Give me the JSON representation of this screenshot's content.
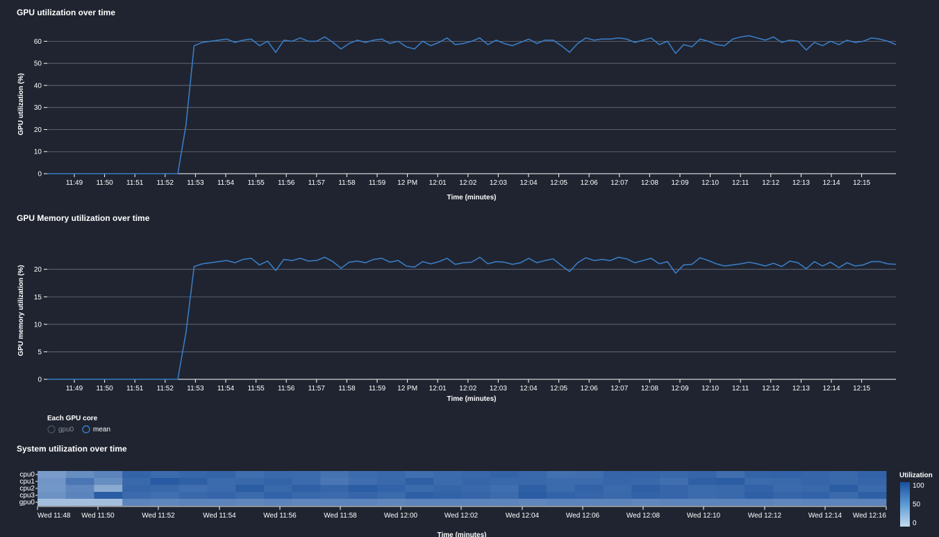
{
  "chart_data": [
    {
      "type": "line",
      "title": "GPU utilization over time",
      "xlabel": "Time (minutes)",
      "ylabel": "GPU utilization (%)",
      "ylim": [
        0,
        68
      ],
      "yticks": [
        0,
        10,
        20,
        30,
        40,
        50,
        60
      ],
      "grid": true,
      "x_tick_labels": [
        "11:49",
        "11:50",
        "11:51",
        "11:52",
        "11:53",
        "11:54",
        "11:55",
        "11:56",
        "11:57",
        "11:58",
        "11:59",
        "12 PM",
        "12:01",
        "12:02",
        "12:03",
        "12:04",
        "12:05",
        "12:06",
        "12:07",
        "12:08",
        "12:09",
        "12:10",
        "12:11",
        "12:12",
        "12:13",
        "12:14",
        "12:15"
      ],
      "series": [
        {
          "name": "mean",
          "color": "#3a7cc4",
          "values": [
            0,
            0,
            0,
            0,
            0,
            0,
            0,
            0,
            0,
            0,
            0,
            0,
            0,
            0,
            0,
            0,
            0,
            22,
            58,
            59.5,
            60,
            60.5,
            61,
            59.5,
            60.5,
            61,
            58,
            60,
            55,
            60.5,
            60,
            61.5,
            60,
            60,
            62,
            59.5,
            56.5,
            59,
            60.5,
            59.5,
            60.5,
            61,
            59,
            60,
            57.5,
            56.5,
            60,
            58,
            59.5,
            61.5,
            58.5,
            59,
            60,
            61.5,
            58.5,
            60.5,
            59,
            58,
            59.5,
            61,
            59,
            60.5,
            60.5,
            58,
            55,
            59,
            61.5,
            60.5,
            61,
            61,
            61.5,
            61,
            59.5,
            60.5,
            61.5,
            58.5,
            60,
            54.5,
            58.5,
            57.5,
            61,
            60,
            58.5,
            58,
            61,
            62,
            62.5,
            61.5,
            60.5,
            62,
            59.5,
            60.5,
            60,
            56,
            59.5,
            58,
            60,
            58.5,
            60.5,
            59.5,
            60,
            61.5,
            61,
            60,
            58.5
          ]
        }
      ]
    },
    {
      "type": "line",
      "title": "GPU Memory utilization over time",
      "xlabel": "Time (minutes)",
      "ylabel": "GPU memory utilization (%)",
      "ylim": [
        0,
        24
      ],
      "yticks": [
        0,
        5,
        10,
        15,
        20
      ],
      "grid": true,
      "x_tick_labels": [
        "11:49",
        "11:50",
        "11:51",
        "11:52",
        "11:53",
        "11:54",
        "11:55",
        "11:56",
        "11:57",
        "11:58",
        "11:59",
        "12 PM",
        "12:01",
        "12:02",
        "12:03",
        "12:04",
        "12:05",
        "12:06",
        "12:07",
        "12:08",
        "12:09",
        "12:10",
        "12:11",
        "12:12",
        "12:13",
        "12:14",
        "12:15"
      ],
      "series": [
        {
          "name": "mean",
          "color": "#3a7cc4",
          "values": [
            0,
            0,
            0,
            0,
            0,
            0,
            0,
            0,
            0,
            0,
            0,
            0,
            0,
            0,
            0,
            0,
            0,
            8.5,
            20.5,
            21,
            21.2,
            21.4,
            21.6,
            21.2,
            21.8,
            22,
            20.8,
            21.5,
            19.8,
            21.8,
            21.6,
            22,
            21.5,
            21.6,
            22.2,
            21.4,
            20.2,
            21.3,
            21.5,
            21.2,
            21.8,
            22,
            21.3,
            21.6,
            20.6,
            20.4,
            21.4,
            21,
            21.4,
            22,
            20.9,
            21.2,
            21.3,
            22.2,
            21,
            21.4,
            21.3,
            20.9,
            21.2,
            22,
            21.2,
            21.6,
            21.9,
            20.7,
            19.6,
            21.2,
            22.1,
            21.6,
            21.8,
            21.6,
            22.2,
            21.9,
            21.2,
            21.6,
            22,
            21,
            21.4,
            19.3,
            20.8,
            20.9,
            22.1,
            21.6,
            21,
            20.6,
            20.8,
            21,
            21.3,
            21,
            20.6,
            21.1,
            20.5,
            21.5,
            21.2,
            20.1,
            21.4,
            20.6,
            21.3,
            20.3,
            21.2,
            20.6,
            20.8,
            21.4,
            21.4,
            21,
            20.9
          ]
        }
      ],
      "legend": {
        "title": "Each GPU core",
        "items": [
          "gpu0",
          "mean"
        ],
        "placement": "bottom-left"
      }
    },
    {
      "type": "heatmap",
      "title": "System utilization over time",
      "xlabel": "Time (minutes)",
      "rows": [
        "cpu0",
        "cpu1",
        "cpu2",
        "cpu3",
        "gpu0"
      ],
      "x_tick_labels": [
        "Wed 11:48",
        "Wed 11:50",
        "Wed 11:52",
        "Wed 11:54",
        "Wed 11:56",
        "Wed 11:58",
        "Wed 12:00",
        "Wed 12:02",
        "Wed 12:04",
        "Wed 12:06",
        "Wed 12:08",
        "Wed 12:10",
        "Wed 12:12",
        "Wed 12:14",
        "Wed 12:16"
      ],
      "legend_title": "Utilization",
      "color_range": [
        0,
        100
      ],
      "legend_ticks": [
        0,
        50,
        100
      ],
      "values": [
        [
          45,
          55,
          62,
          85,
          80,
          83,
          85,
          78,
          82,
          80,
          75,
          80,
          82,
          78,
          80,
          82,
          85,
          82,
          76,
          78,
          84,
          84,
          82,
          84,
          78,
          85,
          86,
          84,
          82,
          86
        ],
        [
          50,
          72,
          55,
          82,
          92,
          88,
          80,
          82,
          85,
          80,
          72,
          78,
          82,
          88,
          80,
          84,
          82,
          82,
          80,
          80,
          83,
          82,
          78,
          88,
          90,
          80,
          82,
          84,
          82,
          84
        ],
        [
          48,
          60,
          35,
          84,
          82,
          78,
          80,
          90,
          82,
          88,
          84,
          90,
          86,
          80,
          84,
          82,
          78,
          88,
          80,
          86,
          80,
          88,
          84,
          80,
          82,
          86,
          80,
          82,
          90,
          80
        ],
        [
          52,
          62,
          90,
          80,
          78,
          82,
          84,
          80,
          86,
          82,
          80,
          84,
          80,
          88,
          86,
          84,
          80,
          90,
          86,
          84,
          82,
          86,
          84,
          80,
          82,
          88,
          84,
          86,
          80,
          88
        ],
        [
          20,
          20,
          20,
          62,
          60,
          62,
          62,
          60,
          62,
          60,
          62,
          62,
          60,
          62,
          62,
          62,
          62,
          60,
          62,
          62,
          62,
          60,
          62,
          62,
          62,
          62,
          60,
          62,
          62,
          62
        ]
      ]
    }
  ]
}
